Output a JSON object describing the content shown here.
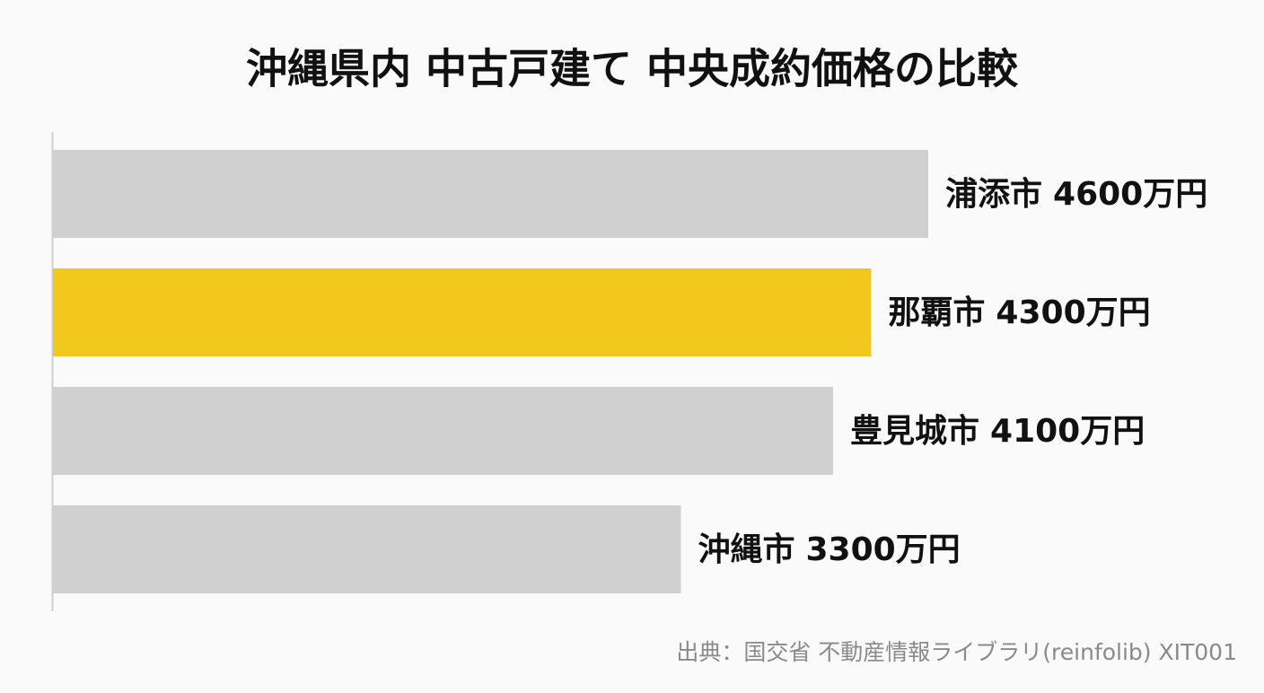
{
  "chart_data": {
    "type": "hbar",
    "title": "沖縄県内 中古戸建て 中央成約価格の比較",
    "categories": [
      "浦添市",
      "那覇市",
      "豊見城市",
      "沖縄市"
    ],
    "values": [
      4600,
      4300,
      4100,
      3300
    ],
    "value_labels": [
      "4600万円",
      "4300万円",
      "4100万円",
      "3300万円"
    ],
    "colors": [
      "#d0d0d0",
      "#f2c81e",
      "#d0d0d0",
      "#d0d0d0"
    ],
    "source": "出典：国交省 不動産情報ライブラリ(reinfolib) XIT001"
  }
}
